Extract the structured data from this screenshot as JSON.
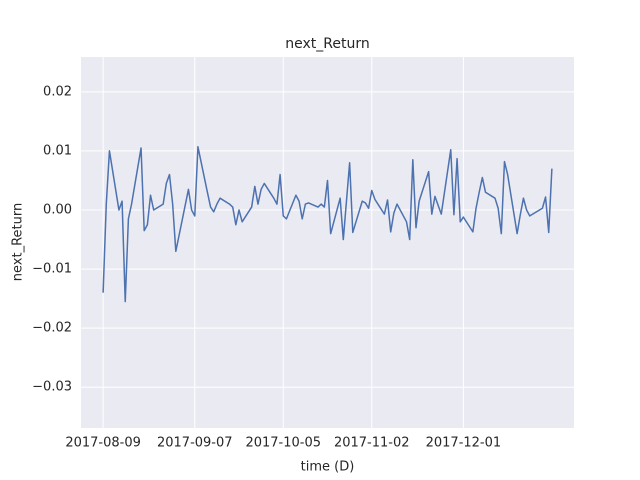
{
  "chart_data": {
    "type": "line",
    "title": "next_Return",
    "xlabel": "time (D)",
    "ylabel": "next_Return",
    "grid": true,
    "x": [
      "2017-08-09",
      "2017-08-10",
      "2017-08-11",
      "2017-08-14",
      "2017-08-15",
      "2017-08-16",
      "2017-08-17",
      "2017-08-18",
      "2017-08-21",
      "2017-08-22",
      "2017-08-23",
      "2017-08-24",
      "2017-08-25",
      "2017-08-28",
      "2017-08-29",
      "2017-08-30",
      "2017-08-31",
      "2017-09-01",
      "2017-09-05",
      "2017-09-06",
      "2017-09-07",
      "2017-09-08",
      "2017-09-11",
      "2017-09-12",
      "2017-09-13",
      "2017-09-14",
      "2017-09-15",
      "2017-09-18",
      "2017-09-19",
      "2017-09-20",
      "2017-09-21",
      "2017-09-22",
      "2017-09-25",
      "2017-09-26",
      "2017-09-27",
      "2017-09-28",
      "2017-09-29",
      "2017-10-02",
      "2017-10-03",
      "2017-10-04",
      "2017-10-05",
      "2017-10-06",
      "2017-10-09",
      "2017-10-10",
      "2017-10-11",
      "2017-10-12",
      "2017-10-13",
      "2017-10-16",
      "2017-10-17",
      "2017-10-18",
      "2017-10-19",
      "2017-10-20",
      "2017-10-23",
      "2017-10-24",
      "2017-10-25",
      "2017-10-26",
      "2017-10-27",
      "2017-10-30",
      "2017-10-31",
      "2017-11-01",
      "2017-11-02",
      "2017-11-03",
      "2017-11-06",
      "2017-11-07",
      "2017-11-08",
      "2017-11-09",
      "2017-11-10",
      "2017-11-13",
      "2017-11-14",
      "2017-11-15",
      "2017-11-16",
      "2017-11-17",
      "2017-11-20",
      "2017-11-21",
      "2017-11-22",
      "2017-11-24",
      "2017-11-27",
      "2017-11-28",
      "2017-11-29",
      "2017-11-30",
      "2017-12-01",
      "2017-12-04",
      "2017-12-05",
      "2017-12-06",
      "2017-12-07",
      "2017-12-08",
      "2017-12-11",
      "2017-12-12",
      "2017-12-13",
      "2017-12-14",
      "2017-12-15",
      "2017-12-18",
      "2017-12-19",
      "2017-12-20",
      "2017-12-21",
      "2017-12-22",
      "2017-12-26",
      "2017-12-27",
      "2017-12-28",
      "2017-12-29"
    ],
    "series": [
      {
        "name": "next_Return",
        "color": "#4c72b0",
        "values": [
          -0.014,
          0.001,
          0.01,
          0.0,
          0.0015,
          -0.0155,
          -0.0015,
          0.001,
          0.0105,
          -0.0035,
          -0.0025,
          0.0025,
          0.0,
          0.001,
          0.0045,
          0.006,
          0.001,
          -0.007,
          0.0035,
          0.0,
          -0.001,
          0.0107,
          0.003,
          0.0005,
          -0.0003,
          0.001,
          0.002,
          0.001,
          0.0005,
          -0.0025,
          0.0,
          -0.002,
          0.0005,
          0.004,
          0.001,
          0.0035,
          0.0045,
          0.002,
          0.001,
          0.006,
          -0.001,
          -0.0015,
          0.0025,
          0.0015,
          -0.0015,
          0.001,
          0.0012,
          0.0005,
          0.001,
          0.0005,
          0.005,
          -0.004,
          0.002,
          -0.005,
          0.0015,
          0.008,
          -0.0038,
          0.0015,
          0.0012,
          0.0003,
          0.0033,
          0.0018,
          -0.0007,
          0.0017,
          -0.0037,
          -0.0005,
          0.001,
          -0.002,
          -0.005,
          0.0085,
          -0.003,
          0.0015,
          0.0065,
          -0.0007,
          0.0023,
          -0.0007,
          0.0102,
          -0.0008,
          0.0087,
          -0.002,
          -0.0012,
          -0.0037,
          0.0003,
          0.003,
          0.0055,
          0.003,
          0.002,
          0.0003,
          -0.004,
          0.0082,
          0.006,
          -0.004,
          -0.0008,
          0.002,
          0,
          -0.001,
          0.0003,
          0.0022,
          -0.0038,
          0.007
        ]
      }
    ],
    "xlim": [
      "2017-08-02",
      "2018-01-05"
    ],
    "xticks": [
      "2017-08-09",
      "2017-09-07",
      "2017-10-05",
      "2017-11-02",
      "2017-12-01"
    ],
    "ylim": [
      -0.0369,
      0.0259
    ],
    "yticks": [
      {
        "value": -0.03,
        "label": "−0.03"
      },
      {
        "value": -0.02,
        "label": "−0.02"
      },
      {
        "value": -0.01,
        "label": "−0.01"
      },
      {
        "value": 0,
        "label": "0.00"
      },
      {
        "value": 0.01,
        "label": "0.01"
      },
      {
        "value": 0.02,
        "label": "0.02"
      }
    ]
  }
}
